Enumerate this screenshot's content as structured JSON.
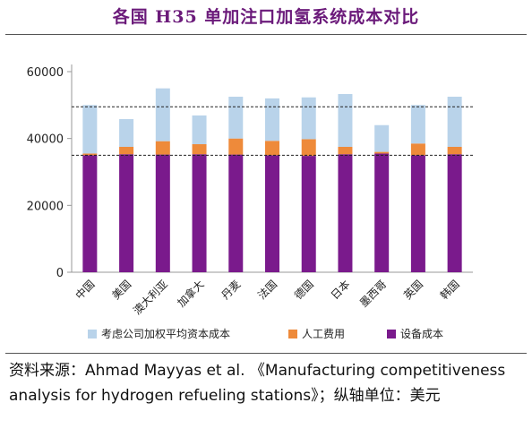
{
  "title": "各国 H35 单加注口加氢系统成本对比",
  "source": {
    "prefix": "资料来源：",
    "citation": "Ahmad Mayyas et al. 《Manufacturing competitiveness analysis for hydrogen refueling stations》",
    "unit_note": "；纵轴单位：美元"
  },
  "colors": {
    "equipment": "#7a1a8c",
    "labor": "#ee8a3a",
    "capital": "#b9d3ea",
    "title": "#6b1a7a",
    "axis": "#999999"
  },
  "chart_data": {
    "type": "bar",
    "stacked": true,
    "categories": [
      "中国",
      "美国",
      "澳大利亚",
      "加拿大",
      "丹麦",
      "法国",
      "德国",
      "日本",
      "墨西哥",
      "英国",
      "韩国"
    ],
    "series": [
      {
        "name": "考虑公司加权平均资本成本",
        "color": "#b9d3ea",
        "values": [
          14500,
          8300,
          15800,
          8600,
          12500,
          12700,
          12500,
          15800,
          8000,
          11500,
          15000
        ]
      },
      {
        "name": "人工费用",
        "color": "#ee8a3a",
        "values": [
          500,
          2200,
          4000,
          3000,
          4800,
          4300,
          5000,
          2200,
          500,
          3500,
          2200
        ]
      },
      {
        "name": "设备成本",
        "color": "#7a1a8c",
        "values": [
          35000,
          35300,
          35200,
          35300,
          35200,
          35000,
          34800,
          35300,
          35500,
          35000,
          35300
        ]
      }
    ],
    "y_ticks": [
      0,
      20000,
      40000,
      60000
    ],
    "ylim": [
      0,
      60000
    ],
    "reference_lines": [
      35000,
      49500
    ],
    "legend_position": "bottom",
    "grid": false
  }
}
